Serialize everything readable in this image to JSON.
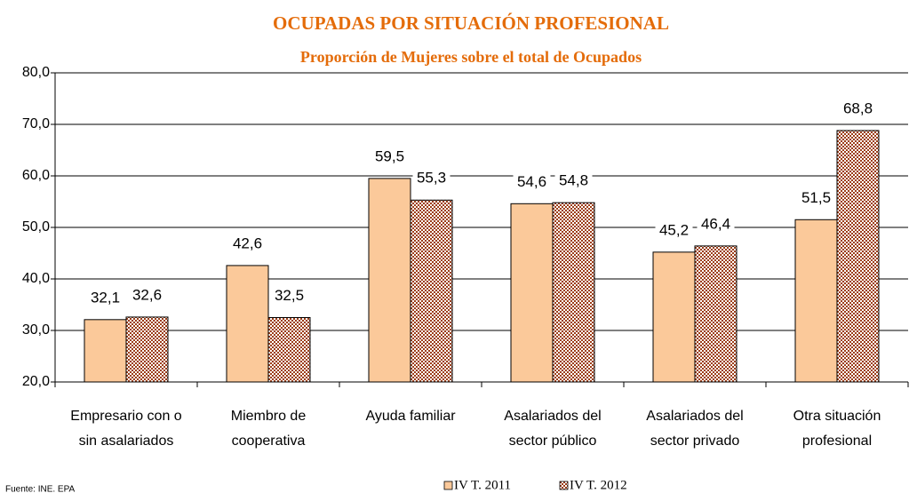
{
  "chart_data": {
    "type": "bar",
    "title": "OCUPADAS POR SITUACIÓN PROFESIONAL",
    "subtitle": "Proporción de Mujeres sobre el total de Ocupados",
    "source": "Fuente: INE. EPA",
    "categories": [
      [
        "Empresario con o",
        "sin asalariados"
      ],
      [
        "Miembro de",
        "cooperativa"
      ],
      [
        "Ayuda familiar"
      ],
      [
        "Asalariados del",
        "sector público"
      ],
      [
        "Asalariados del",
        "sector privado"
      ],
      [
        "Otra situación",
        "profesional"
      ]
    ],
    "series": [
      {
        "name": "IV T. 2011",
        "color": "#fbc99a",
        "values": [
          32.1,
          42.6,
          59.5,
          54.6,
          45.2,
          51.5
        ],
        "value_labels": [
          "32,1",
          "42,6",
          "59,5",
          "54,6",
          "45,2",
          "51,5"
        ]
      },
      {
        "name": "IV T. 2012",
        "color": "#9c3d17",
        "pattern": "checker",
        "values": [
          32.6,
          32.5,
          55.3,
          54.8,
          46.4,
          68.8
        ],
        "value_labels": [
          "32,6",
          "32,5",
          "55,3",
          "54,8",
          "46,4",
          "68,8"
        ]
      }
    ],
    "ylim": [
      20,
      80
    ],
    "yticks": [
      {
        "value": 20,
        "label": "20,0"
      },
      {
        "value": 30,
        "label": "30,0"
      },
      {
        "value": 40,
        "label": "40,0"
      },
      {
        "value": 50,
        "label": "50,0"
      },
      {
        "value": 60,
        "label": "60,0"
      },
      {
        "value": 70,
        "label": "70,0"
      },
      {
        "value": 80,
        "label": "80,0"
      }
    ],
    "grid": true,
    "legend": "bottom"
  }
}
